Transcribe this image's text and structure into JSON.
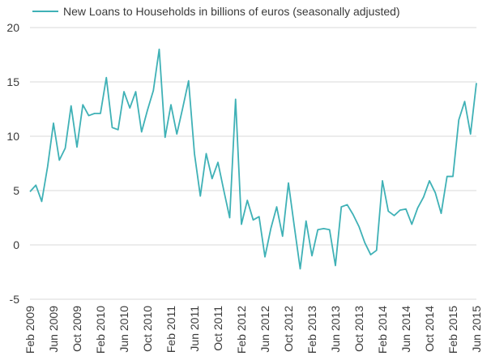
{
  "chart_data": {
    "type": "line",
    "title": "",
    "xlabel": "",
    "ylabel": "",
    "ylim": [
      -5,
      20
    ],
    "yticks": [
      -5,
      0,
      5,
      10,
      15,
      20
    ],
    "grid": true,
    "legend_position": "top",
    "x": [
      "Feb 2009",
      "Mar 2009",
      "Apr 2009",
      "May 2009",
      "Jun 2009",
      "Jul 2009",
      "Aug 2009",
      "Sep 2009",
      "Oct 2009",
      "Nov 2009",
      "Dec 2009",
      "Jan 2010",
      "Feb 2010",
      "Mar 2010",
      "Apr 2010",
      "May 2010",
      "Jun 2010",
      "Jul 2010",
      "Aug 2010",
      "Sep 2010",
      "Oct 2010",
      "Nov 2010",
      "Dec 2010",
      "Jan 2011",
      "Feb 2011",
      "Mar 2011",
      "Apr 2011",
      "May 2011",
      "Jun 2011",
      "Jul 2011",
      "Aug 2011",
      "Sep 2011",
      "Oct 2011",
      "Nov 2011",
      "Dec 2011",
      "Jan 2012",
      "Feb 2012",
      "Mar 2012",
      "Apr 2012",
      "May 2012",
      "Jun 2012",
      "Jul 2012",
      "Aug 2012",
      "Sep 2012",
      "Oct 2012",
      "Nov 2012",
      "Dec 2012",
      "Jan 2013",
      "Feb 2013",
      "Mar 2013",
      "Apr 2013",
      "May 2013",
      "Jun 2013",
      "Jul 2013",
      "Aug 2013",
      "Sep 2013",
      "Oct 2013",
      "Nov 2013",
      "Dec 2013",
      "Jan 2014",
      "Feb 2014",
      "Mar 2014",
      "Apr 2014",
      "May 2014",
      "Jun 2014",
      "Jul 2014",
      "Aug 2014",
      "Sep 2014",
      "Oct 2014",
      "Nov 2014",
      "Dec 2014",
      "Jan 2015",
      "Feb 2015",
      "Mar 2015",
      "Apr 2015",
      "May 2015",
      "Jun 2015"
    ],
    "x_tick_labels": [
      "Feb 2009",
      "Jun 2009",
      "Oct 2009",
      "Feb 2010",
      "Jun 2010",
      "Oct 2010",
      "Feb 2011",
      "Jun 2011",
      "Oct 2011",
      "Feb 2012",
      "Jun 2012",
      "Oct 2012",
      "Feb 2013",
      "Jun 2013",
      "Oct 2013",
      "Feb 2014",
      "Jun 2014",
      "Oct 2014",
      "Feb 2015",
      "Jun 2015"
    ],
    "series": [
      {
        "name": "New Loans to Households in billions of euros (seasonally adjusted)",
        "color": "#3fb1b6",
        "values": [
          4.9,
          5.5,
          4.0,
          7.2,
          11.2,
          7.8,
          8.9,
          12.8,
          9.0,
          12.9,
          11.9,
          12.1,
          12.1,
          15.4,
          10.8,
          10.6,
          14.1,
          12.6,
          14.1,
          10.4,
          12.4,
          14.2,
          18.0,
          9.9,
          12.9,
          10.2,
          12.6,
          15.1,
          8.4,
          4.5,
          8.4,
          6.1,
          7.6,
          5.0,
          2.5,
          13.4,
          1.9,
          4.1,
          2.3,
          2.6,
          -1.1,
          1.5,
          3.5,
          0.8,
          5.7,
          1.7,
          -2.2,
          2.2,
          -1.0,
          1.4,
          1.5,
          1.4,
          -1.9,
          3.5,
          3.7,
          2.8,
          1.7,
          0.2,
          -0.9,
          -0.5,
          5.9,
          3.1,
          2.7,
          3.2,
          3.3,
          1.9,
          3.4,
          4.4,
          5.9,
          4.8,
          2.9,
          6.3,
          6.3,
          11.5,
          13.2,
          10.2,
          14.9
        ]
      }
    ]
  }
}
